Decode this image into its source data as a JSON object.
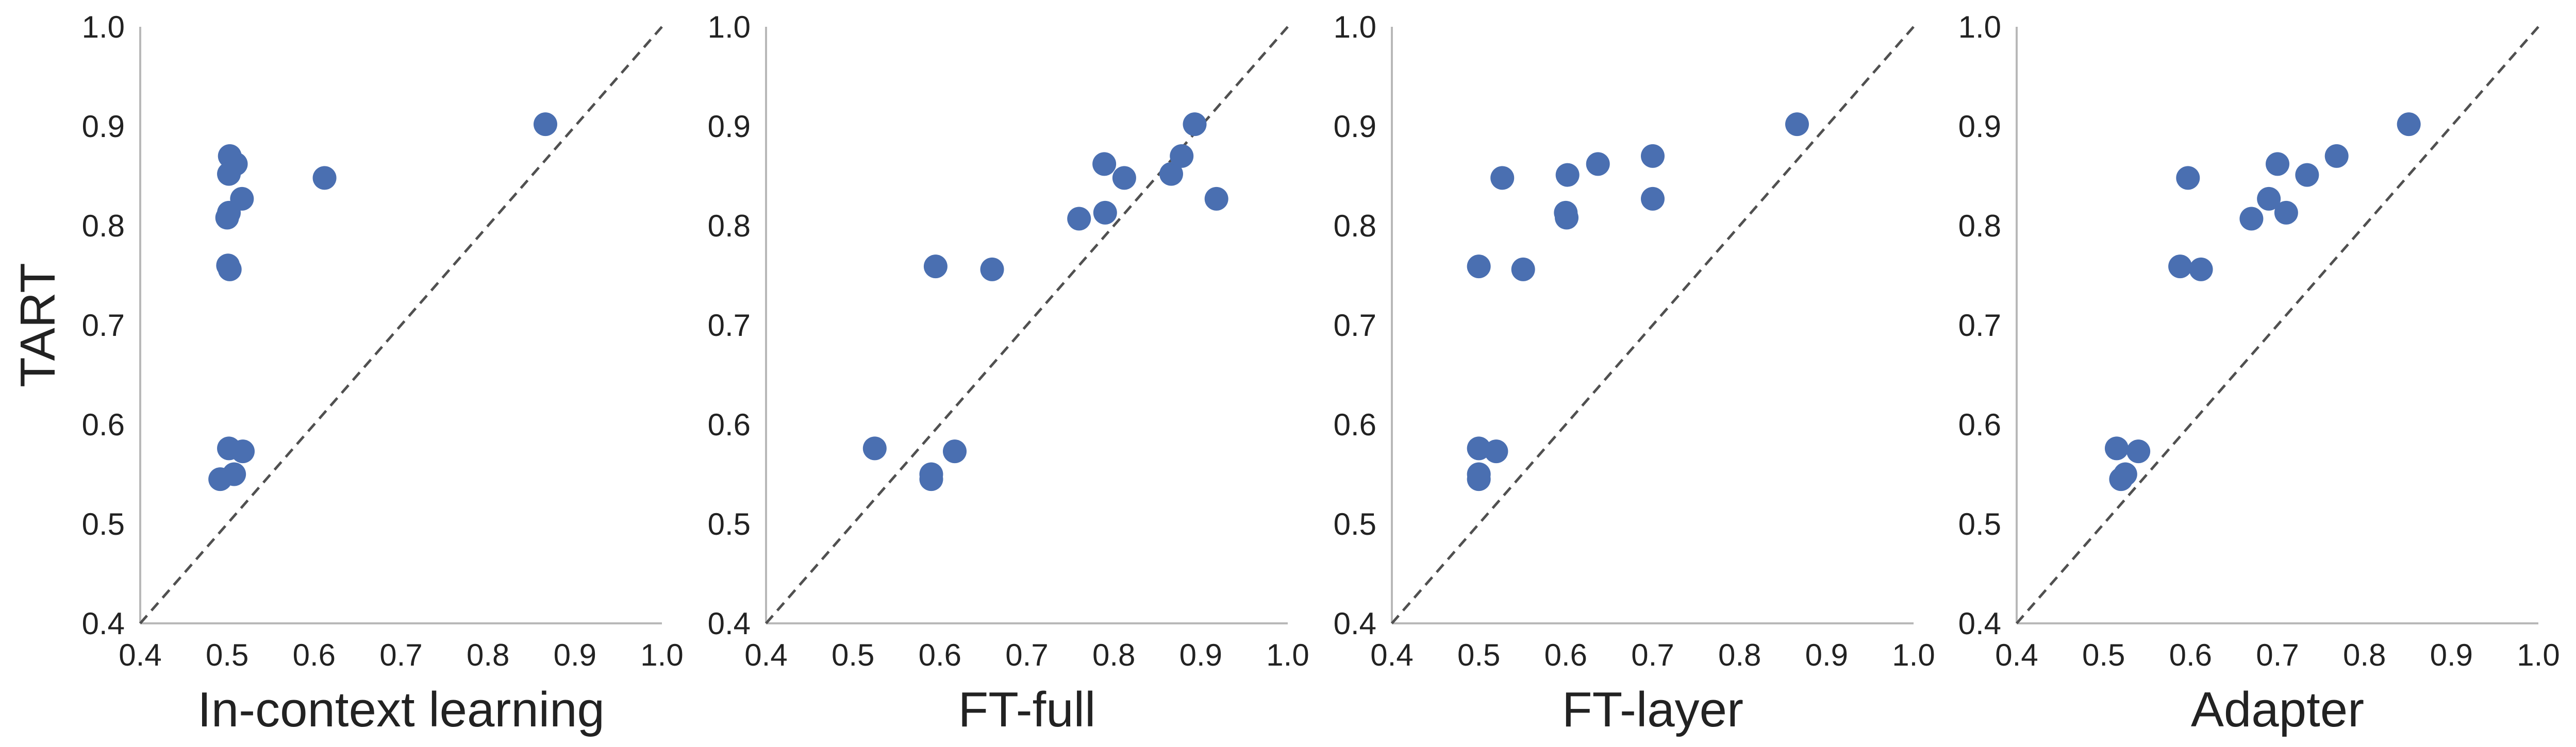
{
  "chart_data": [
    {
      "type": "scatter",
      "xlabel": "In-context learning",
      "ylabel": "TART",
      "xlim": [
        0.4,
        1.0
      ],
      "ylim": [
        0.4,
        1.0
      ],
      "xticks": [
        "0.4",
        "0.5",
        "0.6",
        "0.7",
        "0.8",
        "0.9",
        "1.0"
      ],
      "yticks": [
        "0.4",
        "0.5",
        "0.6",
        "0.7",
        "0.8",
        "0.9",
        "1.0"
      ],
      "grid": false,
      "diagonal": true,
      "points": [
        {
          "x": 0.503,
          "y": 0.87
        },
        {
          "x": 0.51,
          "y": 0.862
        },
        {
          "x": 0.502,
          "y": 0.852
        },
        {
          "x": 0.517,
          "y": 0.827
        },
        {
          "x": 0.502,
          "y": 0.813
        },
        {
          "x": 0.5,
          "y": 0.808
        },
        {
          "x": 0.501,
          "y": 0.76
        },
        {
          "x": 0.503,
          "y": 0.756
        },
        {
          "x": 0.502,
          "y": 0.576
        },
        {
          "x": 0.518,
          "y": 0.573
        },
        {
          "x": 0.508,
          "y": 0.55
        },
        {
          "x": 0.492,
          "y": 0.545
        },
        {
          "x": 0.612,
          "y": 0.848
        },
        {
          "x": 0.866,
          "y": 0.902
        }
      ]
    },
    {
      "type": "scatter",
      "xlabel": "FT-full",
      "ylabel": "",
      "xlim": [
        0.4,
        1.0
      ],
      "ylim": [
        0.4,
        1.0
      ],
      "xticks": [
        "0.4",
        "0.5",
        "0.6",
        "0.7",
        "0.8",
        "0.9",
        "1.0"
      ],
      "yticks": [
        "0.4",
        "0.5",
        "0.6",
        "0.7",
        "0.8",
        "0.9",
        "1.0"
      ],
      "grid": false,
      "diagonal": true,
      "points": [
        {
          "x": 0.525,
          "y": 0.576
        },
        {
          "x": 0.59,
          "y": 0.55
        },
        {
          "x": 0.59,
          "y": 0.545
        },
        {
          "x": 0.617,
          "y": 0.573
        },
        {
          "x": 0.595,
          "y": 0.759
        },
        {
          "x": 0.66,
          "y": 0.756
        },
        {
          "x": 0.76,
          "y": 0.807
        },
        {
          "x": 0.79,
          "y": 0.813
        },
        {
          "x": 0.789,
          "y": 0.862
        },
        {
          "x": 0.812,
          "y": 0.848
        },
        {
          "x": 0.866,
          "y": 0.852
        },
        {
          "x": 0.878,
          "y": 0.87
        },
        {
          "x": 0.893,
          "y": 0.902
        },
        {
          "x": 0.918,
          "y": 0.827
        }
      ]
    },
    {
      "type": "scatter",
      "xlabel": "FT-layer",
      "ylabel": "",
      "xlim": [
        0.4,
        1.0
      ],
      "ylim": [
        0.4,
        1.0
      ],
      "xticks": [
        "0.4",
        "0.5",
        "0.6",
        "0.7",
        "0.8",
        "0.9",
        "1.0"
      ],
      "yticks": [
        "0.4",
        "0.5",
        "0.6",
        "0.7",
        "0.8",
        "0.9",
        "1.0"
      ],
      "grid": false,
      "diagonal": true,
      "points": [
        {
          "x": 0.5,
          "y": 0.576
        },
        {
          "x": 0.52,
          "y": 0.573
        },
        {
          "x": 0.5,
          "y": 0.55
        },
        {
          "x": 0.5,
          "y": 0.545
        },
        {
          "x": 0.5,
          "y": 0.759
        },
        {
          "x": 0.551,
          "y": 0.756
        },
        {
          "x": 0.527,
          "y": 0.848
        },
        {
          "x": 0.6,
          "y": 0.813
        },
        {
          "x": 0.601,
          "y": 0.808
        },
        {
          "x": 0.602,
          "y": 0.851
        },
        {
          "x": 0.637,
          "y": 0.862
        },
        {
          "x": 0.7,
          "y": 0.87
        },
        {
          "x": 0.7,
          "y": 0.827
        },
        {
          "x": 0.866,
          "y": 0.902
        }
      ]
    },
    {
      "type": "scatter",
      "xlabel": "Adapter",
      "ylabel": "",
      "xlim": [
        0.4,
        1.0
      ],
      "ylim": [
        0.4,
        1.0
      ],
      "xticks": [
        "0.4",
        "0.5",
        "0.6",
        "0.7",
        "0.8",
        "0.9",
        "1.0"
      ],
      "yticks": [
        "0.4",
        "0.5",
        "0.6",
        "0.7",
        "0.8",
        "0.9",
        "1.0"
      ],
      "grid": false,
      "diagonal": true,
      "points": [
        {
          "x": 0.515,
          "y": 0.576
        },
        {
          "x": 0.54,
          "y": 0.573
        },
        {
          "x": 0.525,
          "y": 0.55
        },
        {
          "x": 0.52,
          "y": 0.545
        },
        {
          "x": 0.588,
          "y": 0.759
        },
        {
          "x": 0.612,
          "y": 0.756
        },
        {
          "x": 0.597,
          "y": 0.848
        },
        {
          "x": 0.67,
          "y": 0.807
        },
        {
          "x": 0.69,
          "y": 0.827
        },
        {
          "x": 0.7,
          "y": 0.862
        },
        {
          "x": 0.71,
          "y": 0.813
        },
        {
          "x": 0.734,
          "y": 0.851
        },
        {
          "x": 0.768,
          "y": 0.87
        },
        {
          "x": 0.851,
          "y": 0.902
        }
      ]
    }
  ],
  "colors": {
    "marker": "#4a6fb1",
    "axis": "#b8b8b8",
    "diagonal": "#505050",
    "text": "#222222"
  }
}
